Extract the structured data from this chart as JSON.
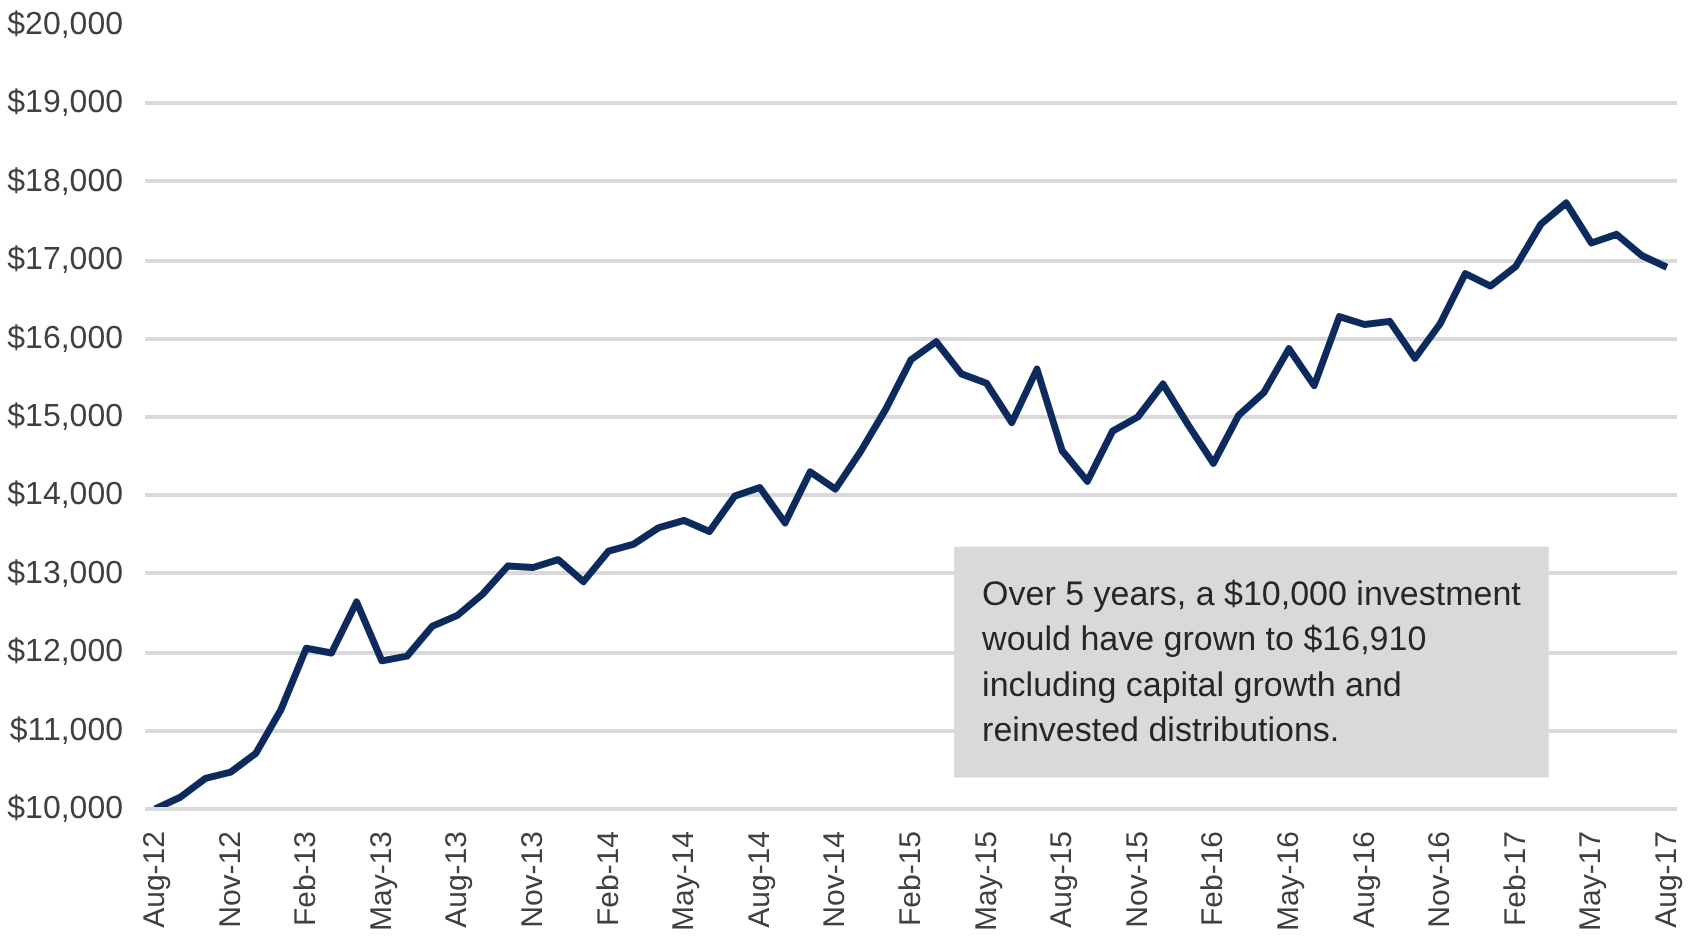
{
  "chart_data": {
    "type": "line",
    "categories": [
      "Aug-12",
      null,
      null,
      "Nov-12",
      null,
      null,
      "Feb-13",
      null,
      null,
      "May-13",
      null,
      null,
      "Aug-13",
      null,
      null,
      "Nov-13",
      null,
      null,
      "Feb-14",
      null,
      null,
      "May-14",
      null,
      null,
      "Aug-14",
      null,
      null,
      "Nov-14",
      null,
      null,
      "Feb-15",
      null,
      null,
      "May-15",
      null,
      null,
      "Aug-15",
      null,
      null,
      "Nov-15",
      null,
      null,
      "Feb-16",
      null,
      null,
      "May-16",
      null,
      null,
      "Aug-16",
      null,
      null,
      "Nov-16",
      null,
      null,
      "Feb-17",
      null,
      null,
      "May-17",
      null,
      null,
      "Aug-17"
    ],
    "series": [
      {
        "color": "#0d2a5e",
        "values": [
          10000,
          10150,
          10390,
          10470,
          10710,
          11270,
          12050,
          11990,
          12640,
          11890,
          11950,
          12330,
          12470,
          12740,
          13100,
          13080,
          13180,
          12900,
          13290,
          13380,
          13590,
          13680,
          13540,
          13990,
          14100,
          13650,
          14300,
          14080,
          14560,
          15100,
          15730,
          15960,
          15550,
          15430,
          14930,
          15610,
          14570,
          14180,
          14820,
          15000,
          15420,
          14900,
          14410,
          15020,
          15310,
          15870,
          15400,
          16280,
          16180,
          16220,
          15750,
          16190,
          16830,
          16670,
          16920,
          17460,
          17730,
          17220,
          17330,
          17060,
          16910
        ]
      }
    ],
    "ylim": [
      10000,
      20000
    ],
    "yticks": [
      {
        "value": 10000,
        "label": "$10,000"
      },
      {
        "value": 11000,
        "label": "$11,000"
      },
      {
        "value": 12000,
        "label": "$12,000"
      },
      {
        "value": 13000,
        "label": "$13,000"
      },
      {
        "value": 14000,
        "label": "$14,000"
      },
      {
        "value": 15000,
        "label": "$15,000"
      },
      {
        "value": 16000,
        "label": "$16,000"
      },
      {
        "value": 17000,
        "label": "$17,000"
      },
      {
        "value": 18000,
        "label": "$18,000"
      },
      {
        "value": 19000,
        "label": "$19,000"
      },
      {
        "value": 20000,
        "label": "$20,000"
      }
    ],
    "grid": "y",
    "marker": "none",
    "annotations": [
      "Over 5 years, a $10,000 investment\nwould have grown to $16,910\nincluding capital growth and\nreinvested distributions."
    ]
  }
}
